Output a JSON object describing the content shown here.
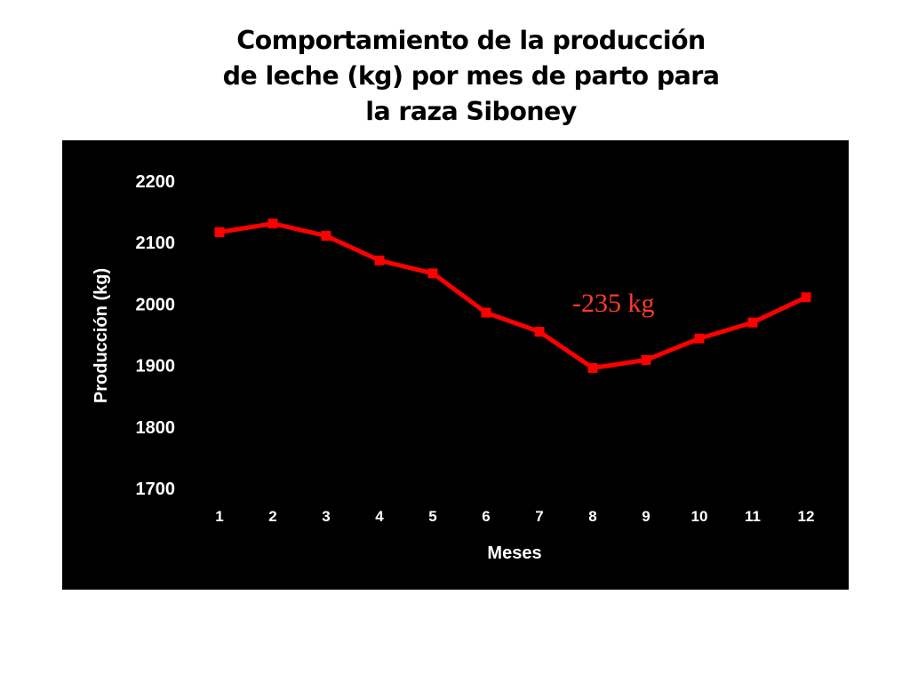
{
  "chart_data": {
    "type": "line",
    "title_lines": [
      "Comportamiento de la producción",
      "de leche (kg) por mes de parto para",
      "la raza Siboney"
    ],
    "xlabel": "Meses",
    "ylabel": "Producción (kg)",
    "categories": [
      "1",
      "2",
      "3",
      "4",
      "5",
      "6",
      "7",
      "8",
      "9",
      "10",
      "11",
      "12"
    ],
    "series": [
      {
        "values": [
          2117,
          2131,
          2111,
          2071,
          2050,
          1986,
          1955,
          1896,
          1909,
          1944,
          1970,
          2011
        ],
        "color": "#ff0000"
      }
    ],
    "ylim": [
      1700,
      2200
    ],
    "yticks": [
      1700,
      1800,
      1900,
      2000,
      2100,
      2200
    ],
    "annotation": "-235 kg",
    "background": "#000000",
    "grid": false,
    "legend": "none"
  }
}
